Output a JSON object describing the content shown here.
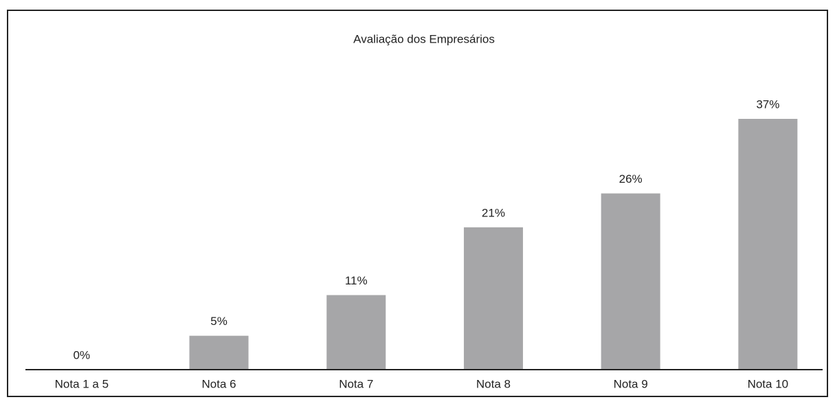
{
  "chart_data": {
    "type": "bar",
    "title": "Avaliação dos Empresários",
    "categories": [
      "Nota 1 a 5",
      "Nota 6",
      "Nota 7",
      "Nota 8",
      "Nota 9",
      "Nota 10"
    ],
    "values": [
      0,
      5,
      11,
      21,
      26,
      37
    ],
    "value_labels": [
      "0%",
      "5%",
      "11%",
      "21%",
      "26%",
      "37%"
    ],
    "color": "#a6a6a8"
  }
}
